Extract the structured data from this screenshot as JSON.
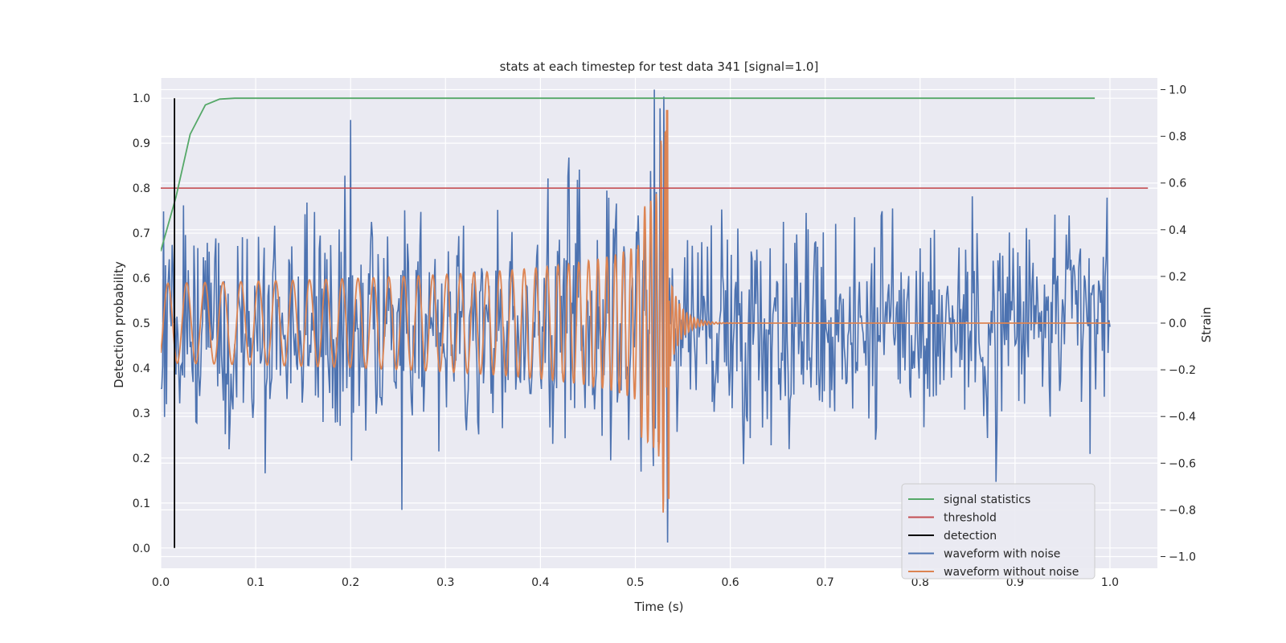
{
  "chart_data": {
    "type": "line",
    "title": "stats at each timestep for test data 341 [signal=1.0]",
    "xlabel": "Time (s)",
    "ylabel_left": "Detection probability",
    "ylabel_right": "Strain",
    "xlim": [
      0.0,
      1.05
    ],
    "ylim_left": [
      -0.045,
      1.045
    ],
    "ylim_right": [
      -1.05,
      1.05
    ],
    "x_ticks": [
      "0.0",
      "0.1",
      "0.2",
      "0.3",
      "0.4",
      "0.5",
      "0.6",
      "0.7",
      "0.8",
      "0.9",
      "1.0"
    ],
    "y_left_ticks": [
      "0.0",
      "0.1",
      "0.2",
      "0.3",
      "0.4",
      "0.5",
      "0.6",
      "0.7",
      "0.8",
      "0.9",
      "1.0"
    ],
    "y_right_ticks": [
      "−1.0",
      "−0.8",
      "−0.6",
      "−0.4",
      "−0.2",
      "0.0",
      "0.2",
      "0.4",
      "0.6",
      "0.8",
      "1.0"
    ],
    "grid": true,
    "legend_position": "lower-right",
    "series": [
      {
        "name": "signal statistics",
        "axis": "left",
        "color": "#55a868",
        "x": [
          0.0,
          0.016,
          0.031,
          0.047,
          0.062,
          0.078,
          0.2,
          0.4,
          0.6,
          0.8,
          0.984
        ],
        "values": [
          0.66,
          0.78,
          0.92,
          0.985,
          0.998,
          1.0,
          1.0,
          1.0,
          1.0,
          1.0,
          1.0
        ]
      },
      {
        "name": "threshold",
        "axis": "left",
        "color": "#c44e52",
        "x": [
          0.0,
          1.04
        ],
        "values": [
          0.8,
          0.8
        ]
      },
      {
        "name": "detection",
        "axis": "left",
        "color": "#000000",
        "x": [
          0.0145,
          0.0145
        ],
        "values": [
          0.0,
          1.0
        ]
      },
      {
        "name": "waveform with noise",
        "axis": "right",
        "color": "#4c72b0",
        "noise_amplitude": 0.32,
        "peak_points": [
          {
            "t": 0.52,
            "v": 1.0
          },
          {
            "t": 0.53,
            "v": 0.97
          },
          {
            "t": 0.526,
            "v": 0.92
          },
          {
            "t": 0.534,
            "v": -0.94
          },
          {
            "t": 0.2,
            "v": 0.87
          },
          {
            "t": 0.254,
            "v": -0.8
          },
          {
            "t": 0.88,
            "v": -0.68
          }
        ]
      },
      {
        "name": "waveform without noise",
        "axis": "right",
        "color": "#dd8452",
        "x_range": [
          0.0,
          1.0
        ],
        "merger_time": 0.535,
        "peak_amplitude_right": 0.91,
        "peak_amplitude_left": -0.75,
        "early_amplitude": 0.17
      }
    ]
  }
}
